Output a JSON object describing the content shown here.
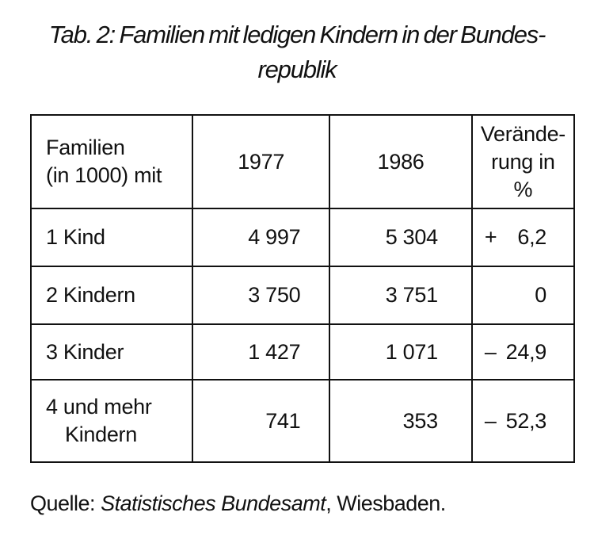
{
  "title": {
    "line1": "Tab. 2: Familien mit ledigen Kindern in der Bundes-",
    "line2": "republik"
  },
  "table": {
    "header": {
      "label_line1": "Familien",
      "label_line2": "(in 1000) mit",
      "year1": "1977",
      "year2": "1986",
      "change_line1": "Verände-",
      "change_line2": "rung in %"
    },
    "rows": [
      {
        "label": "1 Kind",
        "label_line2": "",
        "y1977": "4 997",
        "y1986": "5 304",
        "sign": "+",
        "change": "6,2"
      },
      {
        "label": "2 Kindern",
        "label_line2": "",
        "y1977": "3 750",
        "y1986": "3 751",
        "sign": "",
        "change": "0"
      },
      {
        "label": "3 Kinder",
        "label_line2": "",
        "y1977": "1 427",
        "y1986": "1 071",
        "sign": "–",
        "change": "24,9"
      },
      {
        "label": "4 und mehr",
        "label_line2": "Kindern",
        "y1977": "741",
        "y1986": "353",
        "sign": "–",
        "change": "52,3"
      }
    ]
  },
  "source": {
    "prefix": "Quelle: ",
    "publisher": "Statistisches Bundesamt",
    "suffix": ", Wiesbaden."
  }
}
